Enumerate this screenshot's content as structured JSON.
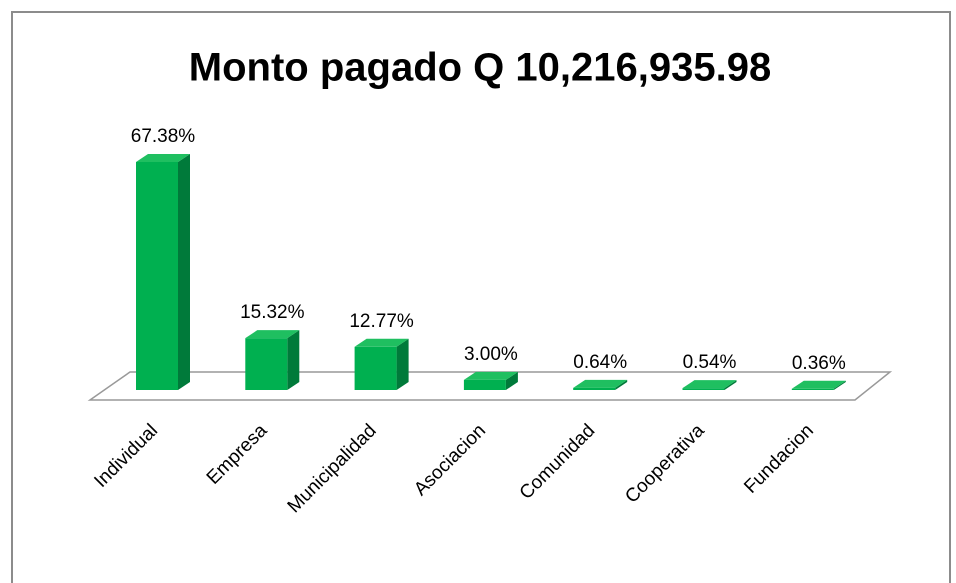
{
  "chart_data": {
    "type": "bar3d",
    "title": "Monto pagado Q 10,216,935.98",
    "categories": [
      "Individual",
      "Empresa",
      "Municipalidad",
      "Asociacion",
      "Comunidad",
      "Cooperativa",
      "Fundacion"
    ],
    "values": [
      67.38,
      15.32,
      12.77,
      3.0,
      0.64,
      0.54,
      0.36
    ],
    "value_labels": [
      "67.38%",
      "15.32%",
      "12.77%",
      "3.00%",
      "0.64%",
      "0.54%",
      "0.36%"
    ],
    "color": "#00b050"
  }
}
